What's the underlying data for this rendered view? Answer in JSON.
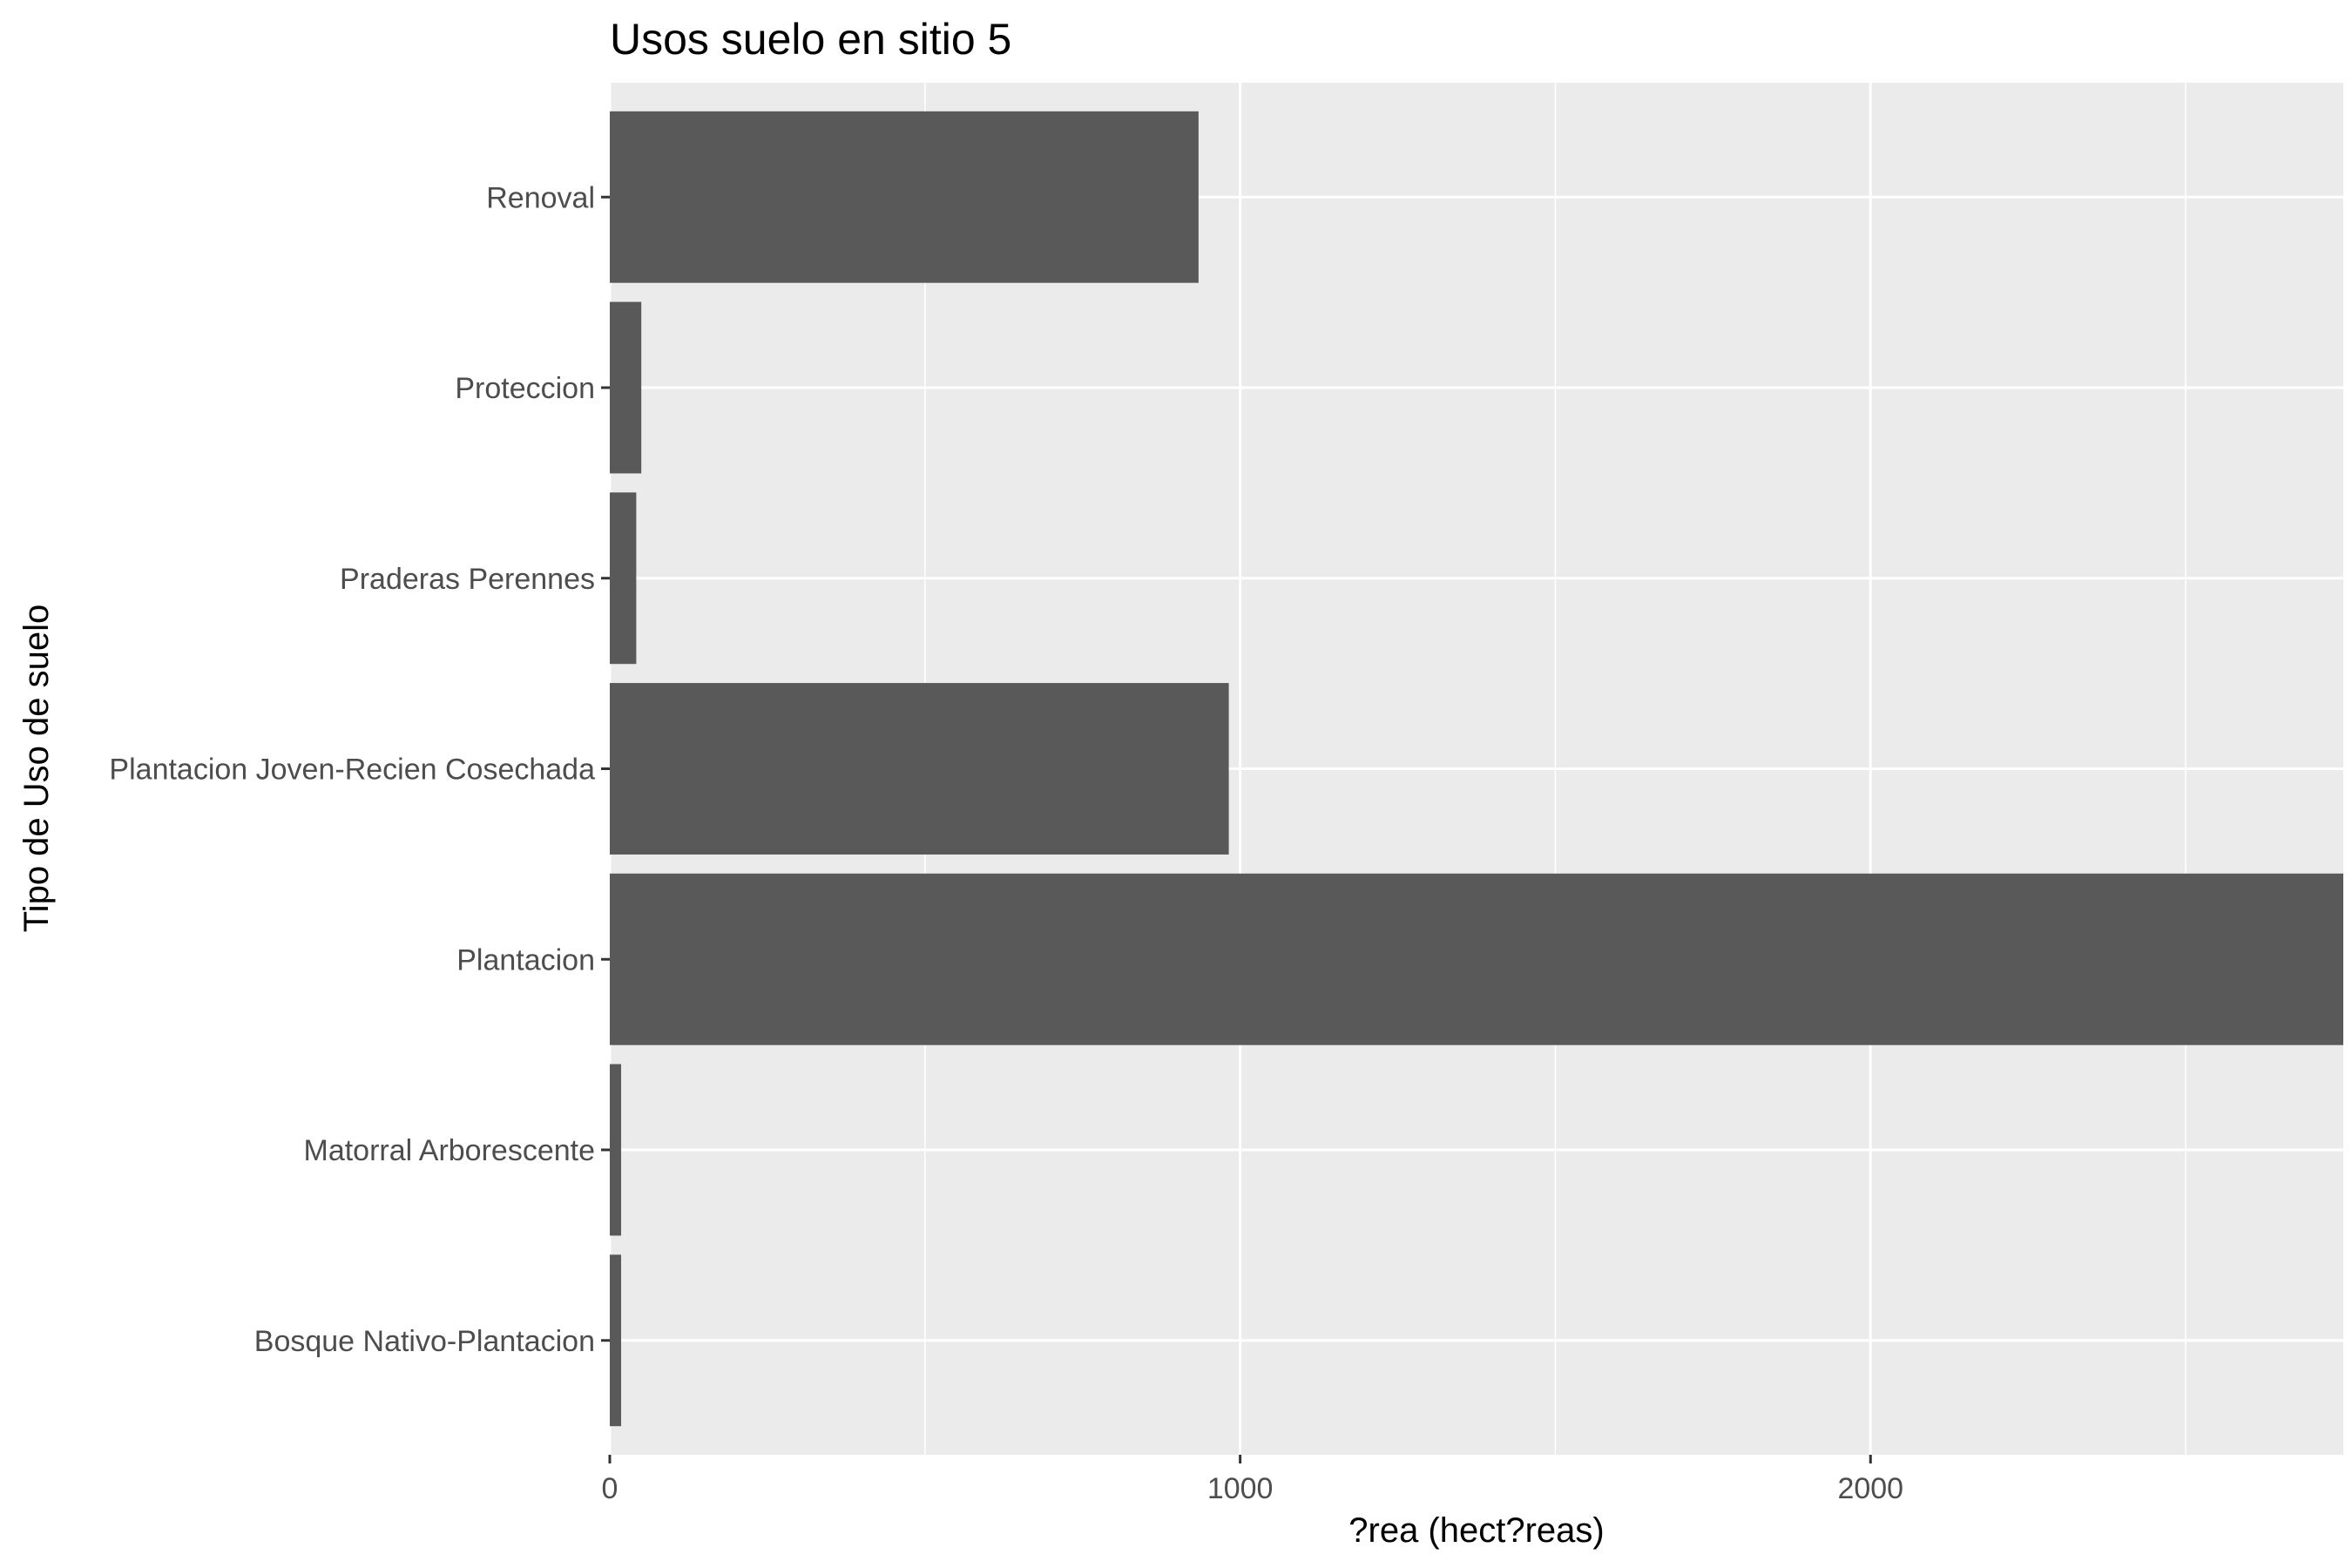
{
  "chart_data": {
    "type": "bar",
    "orientation": "horizontal",
    "title": "Usos suelo en sitio 5",
    "xlabel": "?rea (hect?reas)",
    "ylabel": "Tipo de Uso de suelo",
    "categories": [
      "Bosque Nativo-Plantacion",
      "Matorral Arborescente",
      "Plantacion",
      "Plantacion Joven-Recien Cosechada",
      "Praderas Perennes",
      "Proteccion",
      "Renoval"
    ],
    "values": [
      18,
      18,
      2750,
      982,
      42,
      50,
      934
    ],
    "xlim": [
      0,
      2750
    ],
    "xticks": [
      0,
      1000,
      2000
    ],
    "xtick_labels": [
      "0",
      "1000",
      "2000"
    ],
    "grid": true,
    "colors": {
      "panel_background": "#ebebeb",
      "grid": "#ffffff",
      "bar": "#595959"
    }
  }
}
